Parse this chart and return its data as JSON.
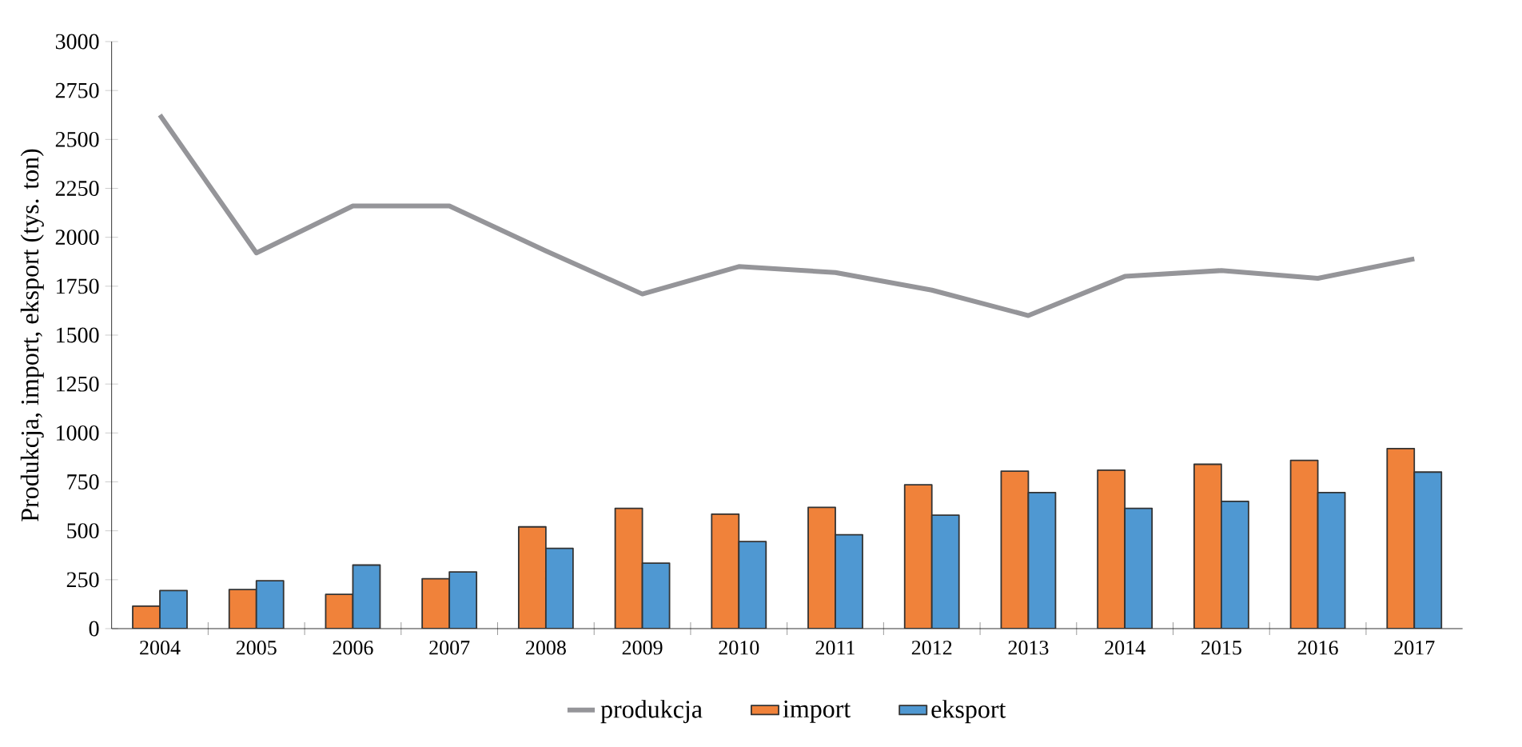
{
  "chart_data": {
    "type": "bar",
    "ylabel": "Produkcja, import, eksport (tys. ton)",
    "categories": [
      "2004",
      "2005",
      "2006",
      "2007",
      "2008",
      "2009",
      "2010",
      "2011",
      "2012",
      "2013",
      "2014",
      "2015",
      "2016",
      "2017"
    ],
    "series": [
      {
        "name": "produkcja",
        "type": "line",
        "color": "#959599",
        "values": [
          2625,
          1920,
          2160,
          2160,
          1930,
          1710,
          1850,
          1820,
          1730,
          1600,
          1800,
          1830,
          1790,
          1890
        ]
      },
      {
        "name": "import",
        "color": "#f0823a",
        "values": [
          115,
          200,
          175,
          255,
          520,
          615,
          585,
          620,
          735,
          805,
          810,
          840,
          860,
          920
        ]
      },
      {
        "name": "eksport",
        "color": "#4f98d2",
        "values": [
          195,
          245,
          325,
          290,
          410,
          335,
          445,
          480,
          580,
          695,
          615,
          650,
          695,
          800
        ]
      }
    ],
    "ylim": [
      0,
      3000
    ],
    "yticks": [
      0,
      250,
      500,
      750,
      1000,
      1250,
      1500,
      1750,
      2000,
      2250,
      2500,
      2750,
      3000
    ],
    "legend": "bottom"
  }
}
